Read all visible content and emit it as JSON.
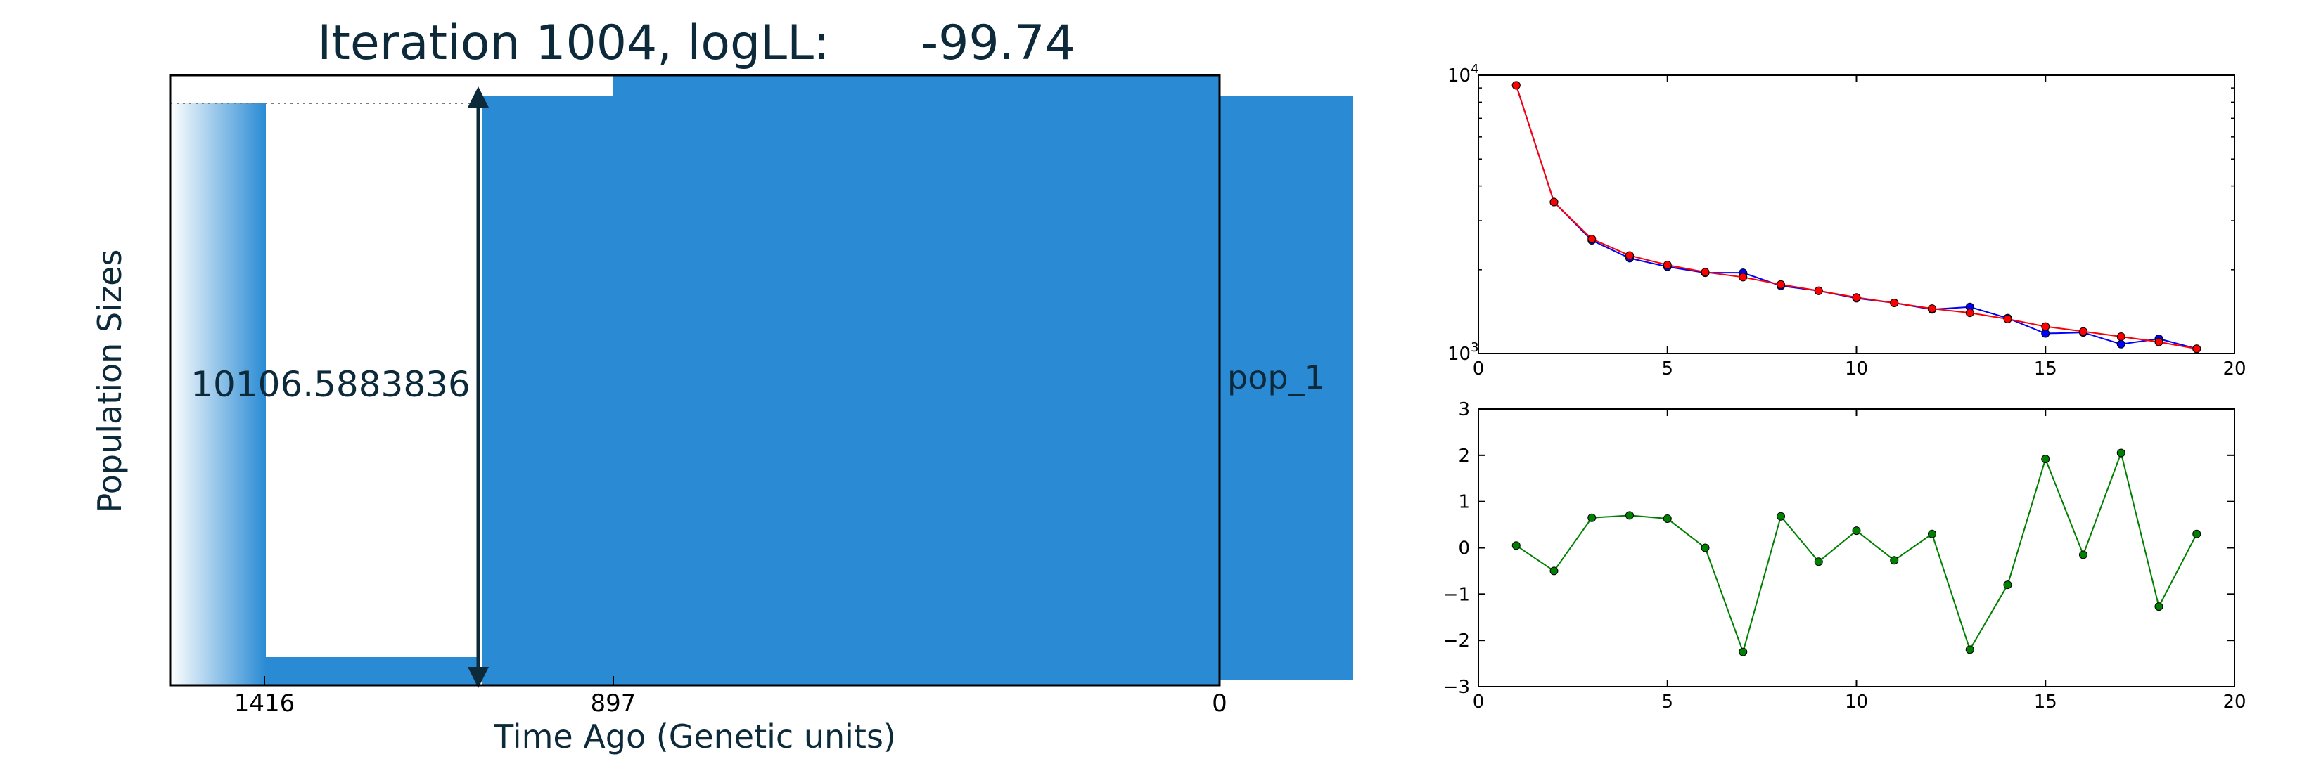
{
  "title_prefix": "Iteration 1004, logLL:",
  "title_value": "-99.74",
  "demography": {
    "ylabel": "Population Sizes",
    "xlabel": "Time Ago (Genetic units)",
    "xticks": [
      "1416",
      "897",
      "0"
    ],
    "size_annotation": "10106.5883836",
    "pop_label": "pop_1",
    "fill_color": "#2a8bd4",
    "text_color": "#0d2a3a"
  },
  "chart_data": [
    {
      "type": "line",
      "yscale": "log",
      "xlim": [
        0,
        20
      ],
      "ylim": [
        1000,
        10000
      ],
      "xticks": [
        "0",
        "5",
        "10",
        "15",
        "20"
      ],
      "yticks": [
        "10^3",
        "10^4"
      ],
      "series": [
        {
          "color": "#0000ff",
          "x": [
            1,
            2,
            3,
            4,
            5,
            6,
            7,
            8,
            9,
            10,
            11,
            12,
            13,
            14,
            15,
            16,
            17,
            18,
            19
          ],
          "values": [
            9200,
            3500,
            2550,
            2200,
            2050,
            1950,
            1950,
            1750,
            1680,
            1580,
            1520,
            1440,
            1470,
            1340,
            1180,
            1190,
            1080,
            1130,
            1040
          ]
        },
        {
          "color": "#ff0000",
          "x": [
            1,
            2,
            3,
            4,
            5,
            6,
            7,
            8,
            9,
            10,
            11,
            12,
            13,
            14,
            15,
            16,
            17,
            18,
            19
          ],
          "values": [
            9200,
            3500,
            2580,
            2250,
            2080,
            1960,
            1880,
            1770,
            1680,
            1590,
            1520,
            1450,
            1400,
            1330,
            1250,
            1200,
            1150,
            1100,
            1040
          ]
        }
      ]
    },
    {
      "type": "line",
      "xlim": [
        0,
        20
      ],
      "ylim": [
        -3,
        3
      ],
      "xticks": [
        "0",
        "5",
        "10",
        "15",
        "20"
      ],
      "yticks": [
        "-3",
        "-2",
        "-1",
        "0",
        "1",
        "2",
        "3"
      ],
      "series": [
        {
          "color": "#008000",
          "x": [
            1,
            2,
            3,
            4,
            5,
            6,
            7,
            8,
            9,
            10,
            11,
            12,
            13,
            14,
            15,
            16,
            17,
            18,
            19
          ],
          "values": [
            0.05,
            -0.5,
            0.65,
            0.7,
            0.63,
            0.0,
            -2.25,
            0.68,
            -0.3,
            0.37,
            -0.27,
            0.3,
            -2.2,
            -0.8,
            1.92,
            -0.15,
            2.05,
            -1.27,
            0.3
          ]
        }
      ]
    }
  ]
}
